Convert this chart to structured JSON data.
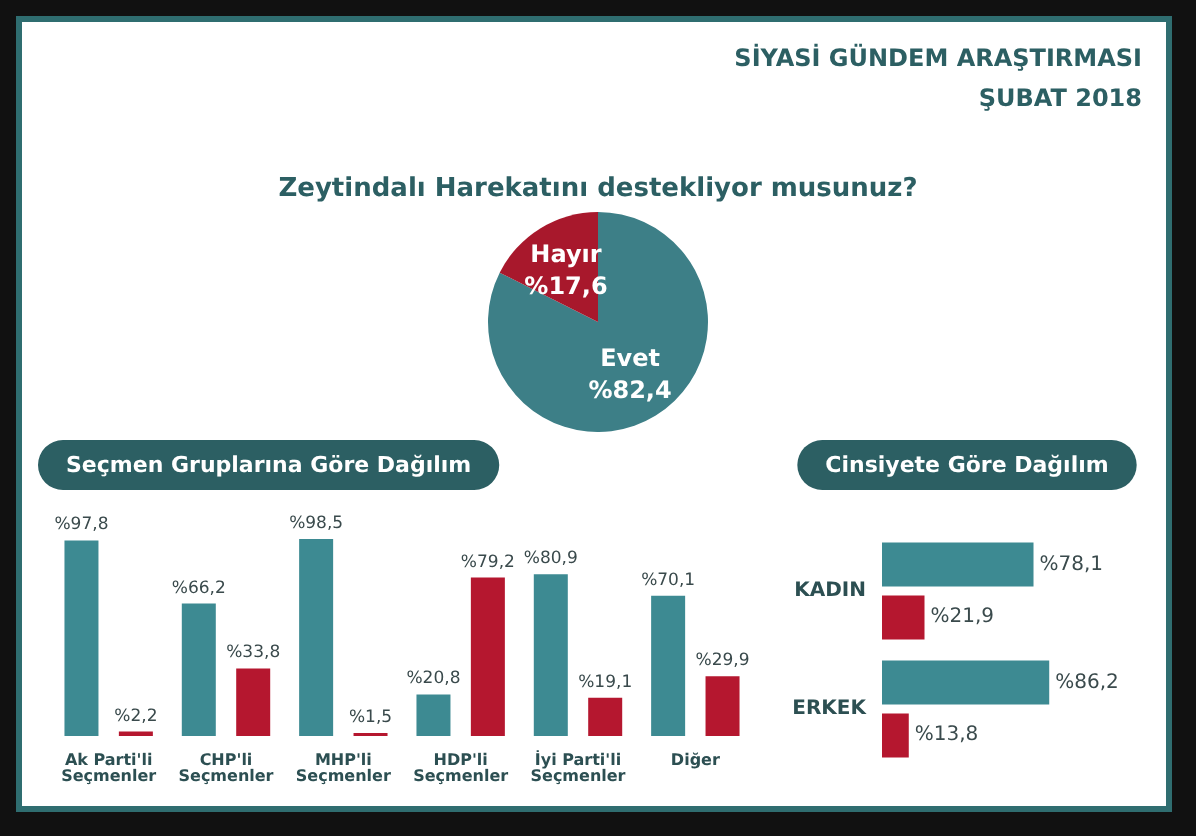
{
  "chart_data": [
    {
      "type": "pie",
      "title": "Zeytindalı Harekatını destekliyor musunuz?",
      "annotations": [
        "SİYASİ GÜNDEM ARAŞTIRMASI",
        "ŞUBAT 2018"
      ],
      "categories": [
        "Evet",
        "Hayır"
      ],
      "values": [
        82.4,
        17.6
      ],
      "colors": [
        "#3d7f87",
        "#a8182c"
      ],
      "value_labels": [
        "%82,4",
        "%17,6"
      ],
      "legend": false
    },
    {
      "type": "bar",
      "title": "Seçmen Gruplarına Göre Dağılım",
      "categories": [
        "Ak Parti'li Seçmenler",
        "CHP'li Seçmenler",
        "MHP'li Seçmenler",
        "HDP'li Seçmenler",
        "İyi Parti'li Seçmenler",
        "Diğer"
      ],
      "legend": false,
      "series": [
        {
          "color": "#3d8a92",
          "values": [
            97.8,
            66.2,
            98.5,
            20.8,
            80.9,
            70.1
          ],
          "value_labels": [
            "%97,8",
            "%66,2",
            "%98,5",
            "%20,8",
            "%80,9",
            "%70,1"
          ]
        },
        {
          "color": "#b5172f",
          "values": [
            2.2,
            33.8,
            1.5,
            79.2,
            19.1,
            29.9
          ],
          "value_labels": [
            "%2,2",
            "%33,8",
            "%1,5",
            "%79,2",
            "%19,1",
            "%29,9"
          ]
        }
      ]
    },
    {
      "type": "bar",
      "orientation": "horizontal",
      "title": "Cinsiyete Göre Dağılım",
      "categories": [
        "KADIN",
        "ERKEK"
      ],
      "legend": false,
      "series": [
        {
          "color": "#3d8a92",
          "values": [
            78.1,
            86.2
          ],
          "value_labels": [
            "%78,1",
            "%86,2"
          ]
        },
        {
          "color": "#b5172f",
          "values": [
            21.9,
            13.8
          ],
          "value_labels": [
            "%21,9",
            "%13,8"
          ]
        }
      ]
    }
  ]
}
